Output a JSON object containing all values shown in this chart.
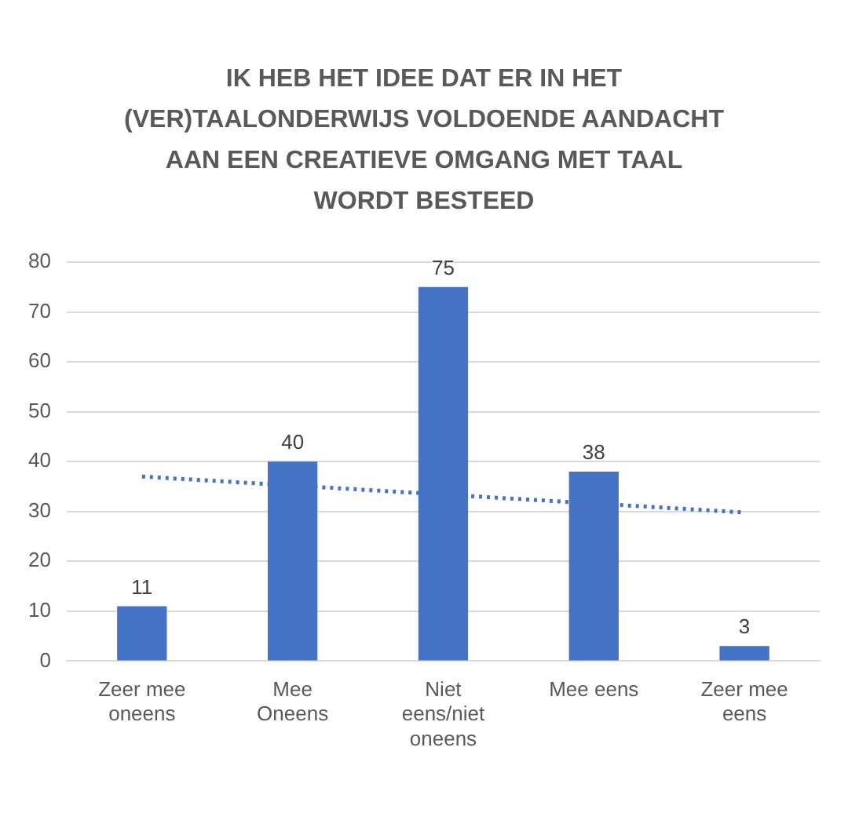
{
  "chart_data": {
    "type": "bar",
    "title": "IK HEB HET IDEE DAT ER IN HET (VER)TAALONDERWIJS VOLDOENDE AANDACHT AAN EEN CREATIEVE OMGANG MET TAAL WORDT BESTEED",
    "categories": [
      "Zeer mee oneens",
      "Mee Oneens",
      "Niet eens/niet oneens",
      "Mee eens",
      "Zeer mee eens"
    ],
    "series": [
      {
        "color": "#4472c4",
        "values": [
          11,
          40,
          75,
          38,
          3
        ],
        "value_labels": [
          "11",
          "40",
          "75",
          "38",
          "3"
        ]
      },
      {
        "type": "line",
        "color": "#4472c4",
        "values": [
          37,
          35.2,
          33.4,
          31.6,
          29.8
        ],
        "line_style": "dotted",
        "marker": "none"
      }
    ],
    "ylim": [
      0,
      80
    ],
    "yticks": [
      0,
      10,
      20,
      30,
      40,
      50,
      60,
      70,
      80
    ],
    "grid": "y"
  }
}
